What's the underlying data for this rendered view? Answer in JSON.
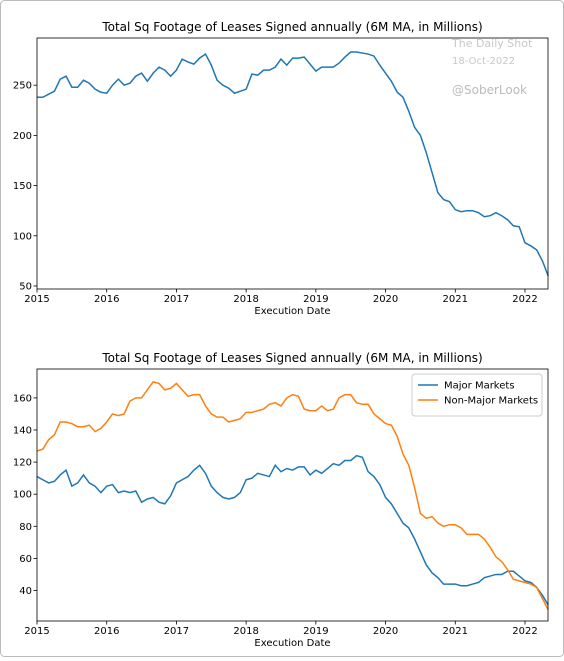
{
  "watermark": [
    "The Daily Shot",
    "18-Oct-2022",
    "@SoberLook"
  ],
  "chart_data": [
    {
      "type": "line",
      "title": "Total Sq Footage of Leases Signed annually (6M MA, in Millions)",
      "x_label": "Execution Date",
      "x": [
        2015,
        2015.083,
        2015.167,
        2015.25,
        2015.333,
        2015.417,
        2015.5,
        2015.583,
        2015.667,
        2015.75,
        2015.833,
        2015.917,
        2016,
        2016.083,
        2016.167,
        2016.25,
        2016.333,
        2016.417,
        2016.5,
        2016.583,
        2016.667,
        2016.75,
        2016.833,
        2016.917,
        2017,
        2017.083,
        2017.167,
        2017.25,
        2017.333,
        2017.417,
        2017.5,
        2017.583,
        2017.667,
        2017.75,
        2017.833,
        2017.917,
        2018,
        2018.083,
        2018.167,
        2018.25,
        2018.333,
        2018.417,
        2018.5,
        2018.583,
        2018.667,
        2018.75,
        2018.833,
        2018.917,
        2019,
        2019.083,
        2019.167,
        2019.25,
        2019.333,
        2019.417,
        2019.5,
        2019.583,
        2019.667,
        2019.75,
        2019.833,
        2019.917,
        2020,
        2020.083,
        2020.167,
        2020.25,
        2020.333,
        2020.417,
        2020.5,
        2020.583,
        2020.667,
        2020.75,
        2020.833,
        2020.917,
        2021,
        2021.083,
        2021.167,
        2021.25,
        2021.333,
        2021.417,
        2021.5,
        2021.583,
        2021.667,
        2021.75,
        2021.833,
        2021.917,
        2022,
        2022.083,
        2022.167,
        2022.25,
        2022.333
      ],
      "series": [
        {
          "name": "Total",
          "color": "#1f77b4",
          "values": [
            238,
            238,
            241,
            244,
            256,
            259,
            248,
            248,
            255,
            252,
            246,
            243,
            242,
            250,
            256,
            250,
            252,
            259,
            262,
            254,
            262,
            268,
            265,
            259,
            265,
            276,
            273,
            271,
            277,
            281,
            270,
            255,
            250,
            247,
            242,
            244,
            246,
            261,
            260,
            265,
            265,
            268,
            276,
            270,
            277,
            277,
            278,
            271,
            264,
            268,
            268,
            268,
            272,
            278,
            283,
            283,
            282,
            281,
            279,
            270,
            262,
            254,
            243,
            238,
            224,
            208,
            200,
            183,
            163,
            143,
            136,
            134,
            126,
            124,
            125,
            125,
            123,
            119,
            120,
            123,
            120,
            116,
            110,
            109,
            93,
            90,
            86,
            75,
            60
          ]
        }
      ],
      "legend": false,
      "xlim": [
        2015,
        2022.33
      ],
      "xticks": [
        2015,
        2016,
        2017,
        2018,
        2019,
        2020,
        2021,
        2022
      ],
      "ylim": [
        47,
        297
      ],
      "yticks": [
        50,
        100,
        150,
        200,
        250
      ]
    },
    {
      "type": "line",
      "title": "Total Sq Footage of Leases Signed annually (6M MA, in Millions)",
      "x_label": "Execution Date",
      "x": [
        2015,
        2015.083,
        2015.167,
        2015.25,
        2015.333,
        2015.417,
        2015.5,
        2015.583,
        2015.667,
        2015.75,
        2015.833,
        2015.917,
        2016,
        2016.083,
        2016.167,
        2016.25,
        2016.333,
        2016.417,
        2016.5,
        2016.583,
        2016.667,
        2016.75,
        2016.833,
        2016.917,
        2017,
        2017.083,
        2017.167,
        2017.25,
        2017.333,
        2017.417,
        2017.5,
        2017.583,
        2017.667,
        2017.75,
        2017.833,
        2017.917,
        2018,
        2018.083,
        2018.167,
        2018.25,
        2018.333,
        2018.417,
        2018.5,
        2018.583,
        2018.667,
        2018.75,
        2018.833,
        2018.917,
        2019,
        2019.083,
        2019.167,
        2019.25,
        2019.333,
        2019.417,
        2019.5,
        2019.583,
        2019.667,
        2019.75,
        2019.833,
        2019.917,
        2020,
        2020.083,
        2020.167,
        2020.25,
        2020.333,
        2020.417,
        2020.5,
        2020.583,
        2020.667,
        2020.75,
        2020.833,
        2020.917,
        2021,
        2021.083,
        2021.167,
        2021.25,
        2021.333,
        2021.417,
        2021.5,
        2021.583,
        2021.667,
        2021.75,
        2021.833,
        2021.917,
        2022,
        2022.083,
        2022.167,
        2022.25,
        2022.333
      ],
      "series": [
        {
          "name": "Major Markets",
          "color": "#1f77b4",
          "values": [
            111,
            109,
            107,
            108,
            112,
            115,
            105,
            107,
            112,
            107,
            105,
            101,
            105,
            106,
            101,
            102,
            101,
            102,
            95,
            97,
            98,
            95,
            94,
            99,
            107,
            109,
            111,
            115,
            118,
            113,
            105,
            101,
            98,
            97,
            98,
            101,
            109,
            110,
            113,
            112,
            111,
            118,
            114,
            116,
            115,
            117,
            117,
            112,
            115,
            113,
            116,
            119,
            118,
            121,
            121,
            124,
            123,
            114,
            111,
            106,
            98,
            94,
            88,
            82,
            79,
            72,
            64,
            56,
            51,
            48,
            44,
            44,
            44,
            43,
            43,
            44,
            45,
            48,
            49,
            50,
            50,
            52,
            52,
            49,
            46,
            45,
            42,
            37,
            31
          ]
        },
        {
          "name": "Non-Major Markets",
          "color": "#ff7f0e",
          "values": [
            127,
            128,
            134,
            137,
            145,
            145,
            144,
            142,
            142,
            143,
            139,
            141,
            145,
            150,
            149,
            150,
            158,
            160,
            160,
            165,
            170,
            169,
            165,
            166,
            169,
            165,
            161,
            162,
            162,
            155,
            150,
            148,
            148,
            145,
            146,
            147,
            151,
            151,
            152,
            153,
            156,
            157,
            155,
            160,
            162,
            161,
            153,
            152,
            152,
            155,
            152,
            153,
            160,
            162,
            162,
            157,
            156,
            156,
            150,
            147,
            144,
            143,
            136,
            125,
            118,
            104,
            88,
            85,
            86,
            82,
            80,
            81,
            81,
            79,
            75,
            75,
            75,
            72,
            67,
            61,
            58,
            53,
            47,
            46,
            45,
            44,
            42,
            35,
            28
          ]
        }
      ],
      "legend": "upper right",
      "xlim": [
        2015,
        2022.33
      ],
      "xticks": [
        2015,
        2016,
        2017,
        2018,
        2019,
        2020,
        2021,
        2022
      ],
      "ylim": [
        21,
        178
      ],
      "yticks": [
        40,
        60,
        80,
        100,
        120,
        140,
        160
      ]
    }
  ]
}
